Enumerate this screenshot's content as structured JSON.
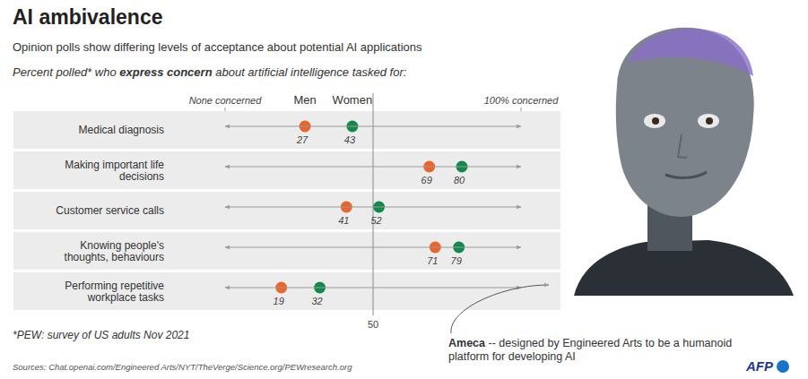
{
  "chart_data": {
    "type": "dot",
    "title": "AI ambivalence",
    "subtitle": "Opinion polls show differing levels of acceptance about potential AI applications",
    "axis_title": "Percent polled* who express concern about artificial intelligence tasked for:",
    "axis_title_emphasis": "express concern",
    "orientation": "horizontal",
    "categories": [
      "Medical diagnosis",
      "Making important life decisions",
      "Customer service calls",
      "Knowing people's thoughts, behaviours",
      "Performing repetitive workplace tasks"
    ],
    "series": [
      {
        "name": "Men",
        "color": "#e8652b",
        "values": [
          27,
          69,
          41,
          71,
          19
        ]
      },
      {
        "name": "Women",
        "color": "#12894a",
        "values": [
          43,
          80,
          52,
          79,
          32
        ]
      }
    ],
    "xlim": [
      0,
      100
    ],
    "xticks": [
      {
        "value": 0,
        "label": "None concerned"
      },
      50,
      {
        "value": 100,
        "label": "100% concerned"
      }
    ],
    "data_labels": true,
    "legend": "top",
    "footnote": "*PEW: survey of US adults Nov 2021",
    "caption": "Ameca -- designed by Engineered Arts to be a humanoid platform for developing AI",
    "caption_emphasis": "Ameca",
    "source": "Sources: Chat.openai.com/Engineered Arts/NYT/TheVerge/Science.org/PEWresearch.org",
    "logo": "AFP"
  }
}
